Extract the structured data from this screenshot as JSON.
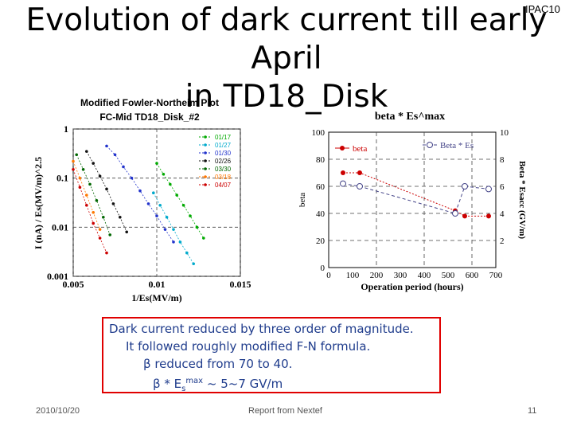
{
  "header": {
    "tag": "IPAC10",
    "title_line1": "Evolution of dark current till early April",
    "title_line2": "in TD18_Disk"
  },
  "chart_data": [
    {
      "type": "scatter",
      "title": "Modified Fowler-Northeim Plot",
      "subtitle": "FC-Mid  TD18_Disk_#2",
      "xlabel": "1/Es(MV/m)",
      "ylabel": "I (nA) / Es(MV/m)^2.5",
      "y_scale": "log",
      "xlim": [
        0.005,
        0.015
      ],
      "ylim": [
        0.001,
        1
      ],
      "x_ticks": [
        "0.005",
        "0.01",
        "0.015"
      ],
      "y_ticks": [
        "1",
        "0.1",
        "0.01",
        "0.001"
      ],
      "grid": "dashed",
      "legend_position": "top-right",
      "series": [
        {
          "name": "01/17",
          "color": "#00aa00",
          "x": [
            0.01,
            0.0104,
            0.0108,
            0.0112,
            0.0116,
            0.012,
            0.0124,
            0.0128
          ],
          "y": [
            0.2,
            0.12,
            0.075,
            0.045,
            0.028,
            0.017,
            0.01,
            0.006
          ]
        },
        {
          "name": "01/27",
          "color": "#00aacc",
          "x": [
            0.0098,
            0.0102,
            0.0106,
            0.011,
            0.0114,
            0.0118,
            0.0122
          ],
          "y": [
            0.05,
            0.028,
            0.016,
            0.009,
            0.005,
            0.003,
            0.0018
          ]
        },
        {
          "name": "01/30",
          "color": "#2233cc",
          "x": [
            0.007,
            0.0075,
            0.008,
            0.0085,
            0.009,
            0.0095,
            0.01,
            0.0105,
            0.011
          ],
          "y": [
            0.45,
            0.3,
            0.17,
            0.1,
            0.055,
            0.03,
            0.017,
            0.009,
            0.005
          ]
        },
        {
          "name": "02/26",
          "color": "#111111",
          "x": [
            0.0058,
            0.0062,
            0.0066,
            0.007,
            0.0074,
            0.0078,
            0.0082
          ],
          "y": [
            0.35,
            0.2,
            0.11,
            0.06,
            0.03,
            0.016,
            0.008
          ]
        },
        {
          "name": "03/30",
          "color": "#006600",
          "x": [
            0.0052,
            0.0056,
            0.006,
            0.0064,
            0.0068,
            0.0072
          ],
          "y": [
            0.3,
            0.15,
            0.075,
            0.035,
            0.016,
            0.007
          ]
        },
        {
          "name": "03/18",
          "color": "#ff7700",
          "x": [
            0.005,
            0.0054,
            0.0058,
            0.0062,
            0.0066
          ],
          "y": [
            0.22,
            0.1,
            0.045,
            0.02,
            0.009
          ]
        },
        {
          "name": "04/07",
          "color": "#cc0000",
          "x": [
            0.005,
            0.0054,
            0.0058,
            0.0062,
            0.0066,
            0.007
          ],
          "y": [
            0.15,
            0.065,
            0.028,
            0.012,
            0.006,
            0.003
          ]
        }
      ]
    },
    {
      "type": "line",
      "title": "beta * Es^max",
      "xlabel": "Operation period (hours)",
      "ylabel": "beta",
      "y2label": "Beta * Esacc (GV/m)",
      "xlim": [
        0,
        700
      ],
      "ylim": [
        0,
        100
      ],
      "y2lim": [
        0,
        10
      ],
      "x_ticks": [
        "0",
        "100",
        "200",
        "300",
        "400",
        "500",
        "600",
        "700"
      ],
      "y_ticks": [
        "0",
        "20",
        "40",
        "60",
        "80",
        "100"
      ],
      "y2_ticks": [
        "2",
        "4",
        "6",
        "8",
        "10"
      ],
      "grid": "dashed",
      "series": [
        {
          "name": "beta",
          "color": "#cc0000",
          "axis": "left",
          "x": [
            60,
            130,
            530,
            570,
            670
          ],
          "y": [
            70,
            70,
            42,
            38,
            38
          ]
        },
        {
          "name": "Beta * Es",
          "color": "#444488",
          "axis": "right",
          "x": [
            60,
            130,
            530,
            570,
            670
          ],
          "y": [
            6.2,
            6.0,
            4.0,
            6.0,
            5.8
          ]
        }
      ]
    }
  ],
  "caption": {
    "line1": "Dark current reduced by three order of magnitude.",
    "line2": "It followed roughly modified F-N formula.",
    "line3": "β reduced from 70 to 40.",
    "line4_prefix": "β * E",
    "line4_sub": "s",
    "line4_sup": "max",
    "line4_suffix": " ~ 5~7 GV/m"
  },
  "footer": {
    "date": "2010/10/20",
    "source": "Report from Nextef",
    "page": "11"
  }
}
